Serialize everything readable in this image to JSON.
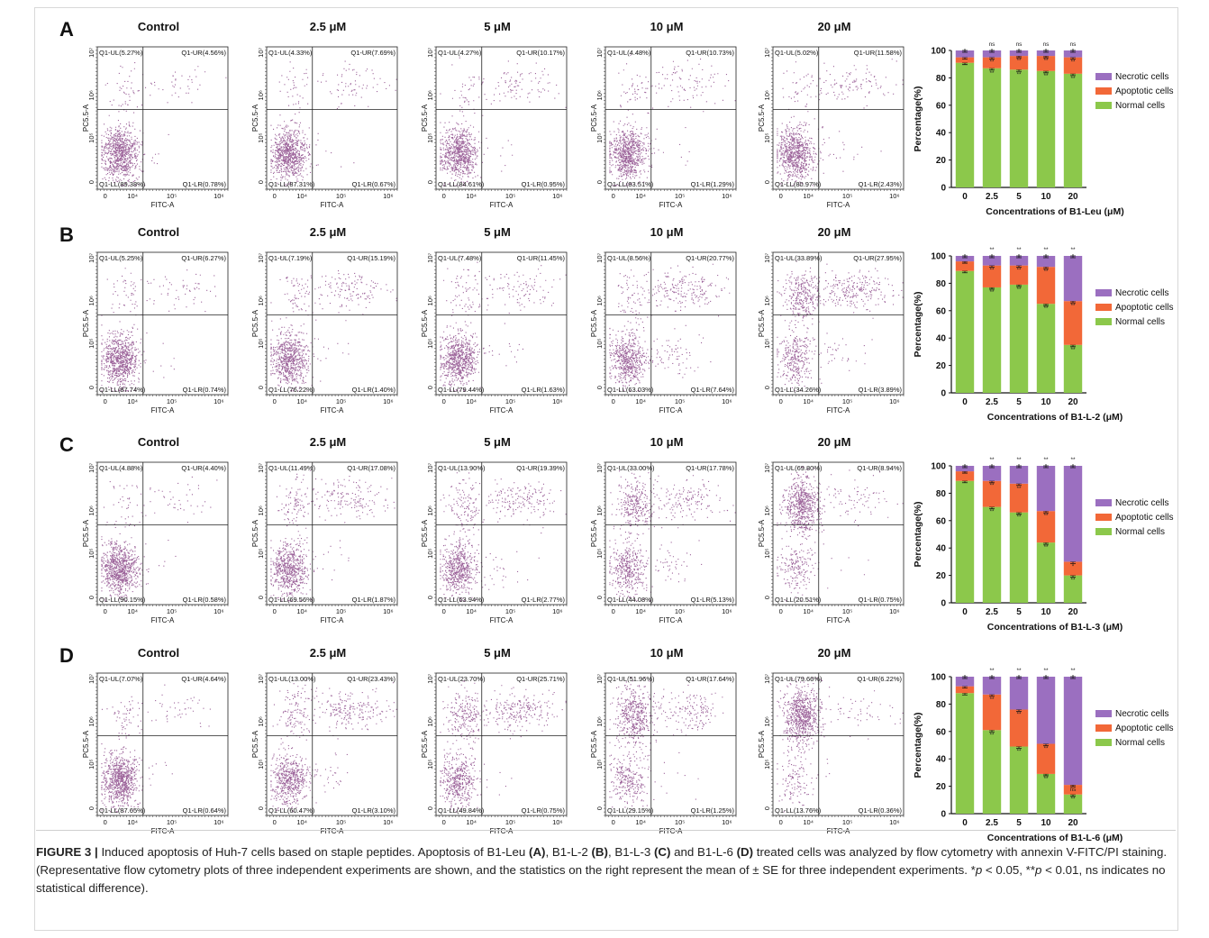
{
  "colors": {
    "normal": "#8cc84b",
    "apoptotic": "#f26838",
    "necrotic": "#9b6fc0",
    "dots": "#7b2f78"
  },
  "flow_axis": {
    "x_label": "FITC-A",
    "y_label": "PC5.5-A",
    "x_ticks": [
      "0",
      "10⁴",
      "10⁵",
      "10⁶"
    ],
    "y_ticks": [
      "0",
      "10⁵",
      "10⁶",
      "10⁷"
    ]
  },
  "legend": [
    "Necrotic cells",
    "Apoptotic cells",
    "Normal cells"
  ],
  "panels": [
    {
      "letter": "A",
      "bar_xlabel": "Concentrations of  B1-Leu (μM)",
      "flows": [
        {
          "title": "Control",
          "ul": "Q1-UL(5.27%)",
          "ur": "Q1-UR(4.56%)",
          "ll": "Q1-LL(89.38%)",
          "lr": "Q1-LR(0.78%)"
        },
        {
          "title": "2.5 μM",
          "ul": "Q1-UL(4.33%)",
          "ur": "Q1-UR(7.69%)",
          "ll": "Q1-LL(87.31%)",
          "lr": "Q1-LR(0.67%)"
        },
        {
          "title": "5 μM",
          "ul": "Q1-UL(4.27%)",
          "ur": "Q1-UR(10.17%)",
          "ll": "Q1-LL(84.61%)",
          "lr": "Q1-LR(0.95%)"
        },
        {
          "title": "10 μM",
          "ul": "Q1-UL(4.48%)",
          "ur": "Q1-UR(10.73%)",
          "ll": "Q1-LL(83.51%)",
          "lr": "Q1-LR(1.29%)"
        },
        {
          "title": "20 μM",
          "ul": "Q1-UL(5.02%)",
          "ur": "Q1-UR(11.58%)",
          "ll": "Q1-LL(80.97%)",
          "lr": "Q1-LR(2.43%)"
        }
      ]
    },
    {
      "letter": "B",
      "bar_xlabel": "Concentrations of  B1-L-2 (μM)",
      "flows": [
        {
          "title": "Control",
          "ul": "Q1-UL(5.25%)",
          "ur": "Q1-UR(6.27%)",
          "ll": "Q1-LL(87.74%)",
          "lr": "Q1-LR(0.74%)"
        },
        {
          "title": "2.5 μM",
          "ul": "Q1-UL(7.19%)",
          "ur": "Q1-UR(15.19%)",
          "ll": "Q1-LL(76.22%)",
          "lr": "Q1-LR(1.40%)"
        },
        {
          "title": "5 μM",
          "ul": "Q1-UL(7.48%)",
          "ur": "Q1-UR(11.45%)",
          "ll": "Q1-LL(79.44%)",
          "lr": "Q1-LR(1.63%)"
        },
        {
          "title": "10 μM",
          "ul": "Q1-UL(8.56%)",
          "ur": "Q1-UR(20.77%)",
          "ll": "Q1-LL(63.03%)",
          "lr": "Q1-LR(7.64%)"
        },
        {
          "title": "20 μM",
          "ul": "Q1-UL(33.89%)",
          "ur": "Q1-UR(27.95%)",
          "ll": "Q1-LL(34.26%)",
          "lr": "Q1-LR(3.89%)"
        }
      ]
    },
    {
      "letter": "C",
      "bar_xlabel": "Concentrations of  B1-L-3 (μM)",
      "flows": [
        {
          "title": "Control",
          "ul": "Q1-UL(4.88%)",
          "ur": "Q1-UR(4.40%)",
          "ll": "Q1-LL(90.15%)",
          "lr": "Q1-LR(0.58%)"
        },
        {
          "title": "2.5 μM",
          "ul": "Q1-UL(11.49%)",
          "ur": "Q1-UR(17.08%)",
          "ll": "Q1-LL(69.56%)",
          "lr": "Q1-LR(1.87%)"
        },
        {
          "title": "5 μM",
          "ul": "Q1-UL(13.90%)",
          "ur": "Q1-UR(19.39%)",
          "ll": "Q1-LL(63.94%)",
          "lr": "Q1-LR(2.77%)"
        },
        {
          "title": "10 μM",
          "ul": "Q1-UL(33.00%)",
          "ur": "Q1-UR(17.78%)",
          "ll": "Q1-LL(44.08%)",
          "lr": "Q1-LR(5.13%)"
        },
        {
          "title": "20 μM",
          "ul": "Q1-UL(69.80%)",
          "ur": "Q1-UR(8.94%)",
          "ll": "Q1-LL(20.51%)",
          "lr": "Q1-LR(0.75%)"
        }
      ]
    },
    {
      "letter": "D",
      "bar_xlabel": "Concentrations of  B1-L-6 (μM)",
      "flows": [
        {
          "title": "Control",
          "ul": "Q1-UL(7.07%)",
          "ur": "Q1-UR(4.64%)",
          "ll": "Q1-LL(87.65%)",
          "lr": "Q1-LR(0.64%)"
        },
        {
          "title": "2.5 μM",
          "ul": "Q1-UL(13.00%)",
          "ur": "Q1-UR(23.43%)",
          "ll": "Q1-LL(60.47%)",
          "lr": "Q1-LR(3.10%)"
        },
        {
          "title": "5 μM",
          "ul": "Q1-UL(23.70%)",
          "ur": "Q1-UR(25.71%)",
          "ll": "Q1-LL(49.84%)",
          "lr": "Q1-LR(0.75%)"
        },
        {
          "title": "10 μM",
          "ul": "Q1-UL(51.96%)",
          "ur": "Q1-UR(17.64%)",
          "ll": "Q1-LL(29.15%)",
          "lr": "Q1-LR(1.25%)"
        },
        {
          "title": "20 μM",
          "ul": "Q1-UL(79.66%)",
          "ur": "Q1-UR(6.22%)",
          "ll": "Q1-LL(13.76%)",
          "lr": "Q1-LR(0.36%)"
        }
      ]
    }
  ],
  "chart_data": [
    {
      "type": "bar",
      "stacked": true,
      "ylabel": "Percentage(%)",
      "xlabel": "Concentrations of  B1-Leu (μM)",
      "categories": [
        "0",
        "2.5",
        "5",
        "10",
        "20"
      ],
      "ylim": [
        0,
        100
      ],
      "yticks": [
        0,
        20,
        40,
        60,
        80,
        100
      ],
      "series": [
        {
          "name": "Normal cells",
          "values": [
            91,
            87,
            86,
            85,
            83
          ]
        },
        {
          "name": "Apoptotic cells",
          "values": [
            4,
            8,
            10,
            11,
            12
          ]
        },
        {
          "name": "Necrotic cells",
          "values": [
            5,
            5,
            4,
            4,
            5
          ]
        }
      ],
      "significance": {
        "top": [
          "",
          "ns",
          "ns",
          "ns",
          "ns"
        ],
        "apoptotic": [
          "",
          "**",
          "**",
          "**",
          "**"
        ],
        "normal": [
          "",
          "**",
          "**",
          "**",
          "**"
        ]
      }
    },
    {
      "type": "bar",
      "stacked": true,
      "ylabel": "Percentage(%)",
      "xlabel": "Concentrations of  B1-L-2 (μM)",
      "categories": [
        "0",
        "2.5",
        "5",
        "10",
        "20"
      ],
      "ylim": [
        0,
        100
      ],
      "yticks": [
        0,
        20,
        40,
        60,
        80,
        100
      ],
      "series": [
        {
          "name": "Normal cells",
          "values": [
            89,
            77,
            79,
            65,
            35
          ]
        },
        {
          "name": "Apoptotic cells",
          "values": [
            7,
            16,
            14,
            27,
            32
          ]
        },
        {
          "name": "Necrotic cells",
          "values": [
            4,
            7,
            7,
            8,
            33
          ]
        }
      ],
      "significance": {
        "top": [
          "",
          "**",
          "**",
          "**",
          "**"
        ],
        "apoptotic": [
          "",
          "**",
          "**",
          "**",
          "**"
        ],
        "normal": [
          "",
          "**",
          "**",
          "**",
          "**"
        ]
      }
    },
    {
      "type": "bar",
      "stacked": true,
      "ylabel": "Percentage(%)",
      "xlabel": "Concentrations of  B1-L-3 (μM)",
      "categories": [
        "0",
        "2.5",
        "5",
        "10",
        "20"
      ],
      "ylim": [
        0,
        100
      ],
      "yticks": [
        0,
        20,
        40,
        60,
        80,
        100
      ],
      "series": [
        {
          "name": "Normal cells",
          "values": [
            89,
            70,
            66,
            44,
            20
          ]
        },
        {
          "name": "Apoptotic cells",
          "values": [
            7,
            19,
            21,
            23,
            10
          ]
        },
        {
          "name": "Necrotic cells",
          "values": [
            4,
            11,
            13,
            33,
            70
          ]
        }
      ],
      "significance": {
        "top": [
          "",
          "**",
          "**",
          "**",
          "**"
        ],
        "apoptotic": [
          "",
          "**",
          "**",
          "**",
          "*"
        ],
        "normal": [
          "",
          "**",
          "**",
          "**",
          "**"
        ]
      }
    },
    {
      "type": "bar",
      "stacked": true,
      "ylabel": "Percentage(%)",
      "xlabel": "Concentrations of  B1-L-6 (μM)",
      "categories": [
        "0",
        "2.5",
        "5",
        "10",
        "20"
      ],
      "ylim": [
        0,
        100
      ],
      "yticks": [
        0,
        20,
        40,
        60,
        80,
        100
      ],
      "series": [
        {
          "name": "Normal cells",
          "values": [
            88,
            61,
            49,
            29,
            14
          ]
        },
        {
          "name": "Apoptotic cells",
          "values": [
            5,
            26,
            27,
            22,
            7
          ]
        },
        {
          "name": "Necrotic cells",
          "values": [
            7,
            13,
            24,
            49,
            79
          ]
        }
      ],
      "significance": {
        "top": [
          "",
          "**",
          "**",
          "**",
          "**"
        ],
        "apoptotic": [
          "",
          "**",
          "**",
          "**",
          "ns"
        ],
        "normal": [
          "",
          "**",
          "**",
          "**",
          "**"
        ]
      }
    }
  ],
  "caption": {
    "label": "FIGURE 3 |",
    "text_1": " Induced apoptosis of Huh-7 cells based on staple peptides. Apoptosis of B1-Leu ",
    "a": "(A)",
    "text_2": ", B1-L-2 ",
    "b": "(B)",
    "text_3": ", B1-L-3 ",
    "c": "(C)",
    "text_4": " and B1-L-6 ",
    "d": "(D)",
    "text_5": " treated cells was analyzed by flow cytometry with annexin V-FITC/PI staining. (Representative flow cytometry plots of three independent experiments are shown, and the statistics on the right represent the mean of ± SE for three independent experiments. *",
    "p1": "p",
    "text_6": " < 0.05, **",
    "p2": "p",
    "text_7": " < 0.01, ns indicates no statistical difference)."
  }
}
